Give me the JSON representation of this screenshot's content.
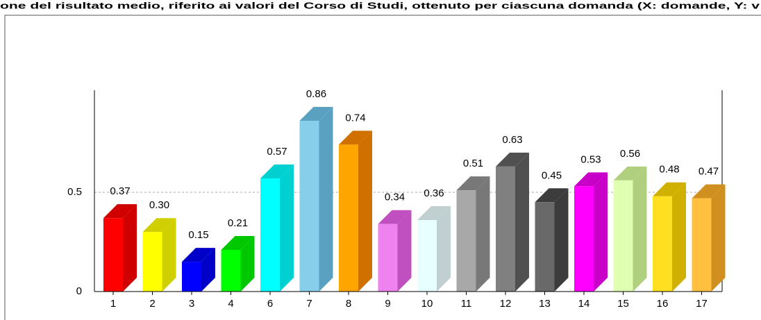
{
  "chart_data": {
    "type": "bar3d",
    "title": "one del risultato medio, riferito ai valori del Corso di Studi, ottenuto per ciascuna domanda (X: domande, Y: v",
    "categories": [
      "1",
      "2",
      "3",
      "4",
      "6",
      "7",
      "8",
      "9",
      "10",
      "11",
      "12",
      "13",
      "14",
      "15",
      "16",
      "17"
    ],
    "values": [
      0.37,
      0.3,
      0.15,
      0.21,
      0.57,
      0.86,
      0.74,
      0.34,
      0.36,
      0.51,
      0.63,
      0.45,
      0.53,
      0.56,
      0.48,
      0.47
    ],
    "value_labels": [
      "0.37",
      "0.30",
      "0.15",
      "0.21",
      "0.57",
      "0.86",
      "0.74",
      "0.34",
      "0.36",
      "0.51",
      "0.63",
      "0.45",
      "0.53",
      "0.56",
      "0.48",
      "0.47"
    ],
    "colors": [
      "#ff0000",
      "#ffff00",
      "#0000ff",
      "#00ff00",
      "#00ffff",
      "#87ceeb",
      "#ffa500",
      "#ee82ee",
      "#e8ffff",
      "#a8a8a8",
      "#808080",
      "#696969",
      "#ff00ff",
      "#e0ffb0",
      "#ffe020",
      "#ffc040"
    ],
    "side_colors": [
      "#d00000",
      "#d0d000",
      "#0000c8",
      "#00c800",
      "#00d0d0",
      "#5aa0c0",
      "#d07000",
      "#c050c0",
      "#c0d0d0",
      "#787878",
      "#505050",
      "#3c3c3c",
      "#c800c8",
      "#b0d080",
      "#d0b000",
      "#d09020"
    ],
    "ylim": [
      0,
      1
    ],
    "yticks": [
      0,
      0.5
    ],
    "grid": true
  }
}
